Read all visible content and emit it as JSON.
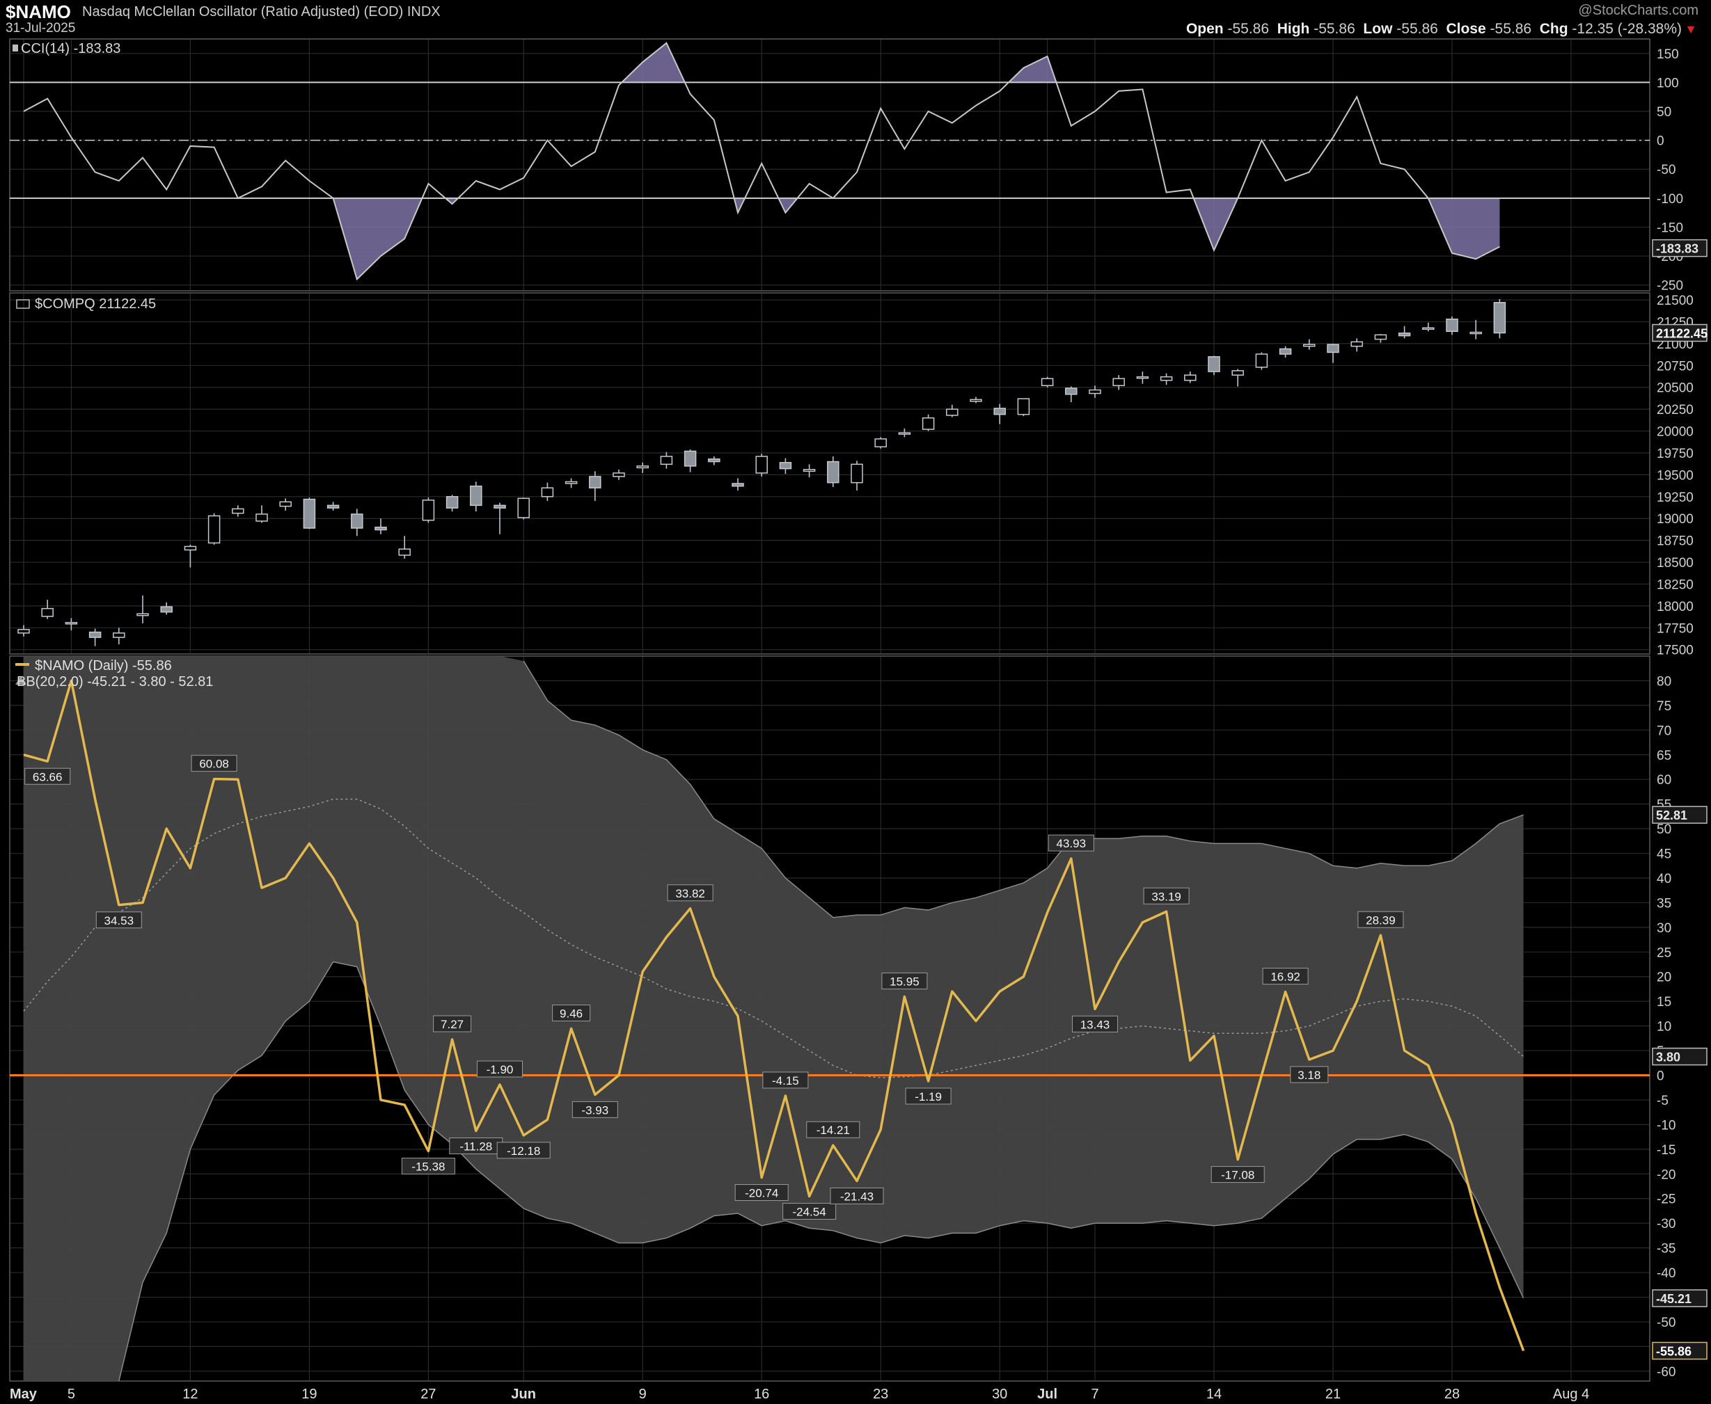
{
  "header": {
    "symbol": "$NAMO",
    "description": "Nasdaq McClellan Oscillator (Ratio Adjusted) (EOD)",
    "exchange": "INDX",
    "date": "31-Jul-2025",
    "brand": "@StockCharts.com",
    "open_label": "Open",
    "open": "-55.86",
    "high_label": "High",
    "high": "-55.86",
    "low_label": "Low",
    "low": "-55.86",
    "close_label": "Close",
    "close": "-55.86",
    "chg_label": "Chg",
    "chg": "-12.35 (-28.38%)",
    "chg_direction": "down"
  },
  "colors": {
    "background": "#000000",
    "grid": "#2a2a2a",
    "namo_line": "#e3b94f",
    "zero_line": "#ff7a1f",
    "bb_fill": "#444444",
    "cci_shade": "#7e72a6",
    "candle_up": "#000000",
    "candle_down": "#8e949c"
  },
  "chart_data": [
    {
      "type": "line",
      "panel": "cci",
      "legend": "CCI(14) -183.83",
      "last_value_label": "-183.83",
      "ylim": [
        -260,
        175
      ],
      "y_ticks": [
        150,
        100,
        50,
        0,
        -50,
        -100,
        -150,
        -200,
        -250
      ],
      "reference_lines": [
        100,
        0,
        -100
      ],
      "values": [
        50,
        72,
        5,
        -55,
        -70,
        -30,
        -85,
        -10,
        -12,
        -100,
        -80,
        -35,
        -70,
        -100,
        -240,
        -200,
        -170,
        -75,
        -110,
        -70,
        -85,
        -65,
        0,
        -45,
        -20,
        95,
        135,
        168,
        80,
        35,
        -125,
        -40,
        -125,
        -75,
        -100,
        -55,
        55,
        -15,
        50,
        30,
        60,
        85,
        125,
        145,
        25,
        50,
        85,
        88,
        -90,
        -85,
        -190,
        -100,
        0,
        -70,
        -55,
        5,
        75,
        -40,
        -50,
        -100,
        -195,
        -205,
        -183.83
      ]
    },
    {
      "type": "candlestick",
      "panel": "compq",
      "legend": "$COMPQ 21122.45",
      "last_value_label": "21122.45",
      "ylim": [
        17450,
        21580
      ],
      "y_ticks": [
        21500,
        21250,
        21000,
        20750,
        20500,
        20250,
        20000,
        19750,
        19500,
        19250,
        19000,
        18750,
        18500,
        18250,
        18000,
        17750,
        17500
      ],
      "ohlc": [
        [
          17690,
          17780,
          17650,
          17730
        ],
        [
          17880,
          18070,
          17850,
          17970
        ],
        [
          17800,
          17860,
          17720,
          17810
        ],
        [
          17700,
          17740,
          17540,
          17640
        ],
        [
          17640,
          17750,
          17560,
          17690
        ],
        [
          17890,
          18120,
          17800,
          17910
        ],
        [
          17990,
          18040,
          17900,
          17930
        ],
        [
          18640,
          18700,
          18440,
          18680
        ],
        [
          18720,
          19060,
          18700,
          19030
        ],
        [
          19060,
          19150,
          19020,
          19110
        ],
        [
          18970,
          19150,
          18950,
          19050
        ],
        [
          19140,
          19230,
          19090,
          19190
        ],
        [
          19220,
          19240,
          18880,
          18890
        ],
        [
          19150,
          19190,
          19090,
          19120
        ],
        [
          19050,
          19110,
          18800,
          18890
        ],
        [
          18900,
          19000,
          18820,
          18870
        ],
        [
          18580,
          18800,
          18540,
          18650
        ],
        [
          18980,
          19240,
          18950,
          19210
        ],
        [
          19250,
          19270,
          19080,
          19120
        ],
        [
          19370,
          19420,
          19080,
          19150
        ],
        [
          19150,
          19180,
          18820,
          19120
        ],
        [
          19010,
          19240,
          18990,
          19230
        ],
        [
          19250,
          19410,
          19200,
          19350
        ],
        [
          19400,
          19460,
          19350,
          19420
        ],
        [
          19480,
          19540,
          19200,
          19350
        ],
        [
          19480,
          19560,
          19440,
          19520
        ],
        [
          19580,
          19640,
          19520,
          19600
        ],
        [
          19620,
          19760,
          19570,
          19710
        ],
        [
          19770,
          19790,
          19530,
          19600
        ],
        [
          19680,
          19710,
          19610,
          19650
        ],
        [
          19400,
          19460,
          19320,
          19370
        ],
        [
          19520,
          19740,
          19480,
          19710
        ],
        [
          19640,
          19690,
          19510,
          19570
        ],
        [
          19540,
          19620,
          19470,
          19560
        ],
        [
          19650,
          19710,
          19360,
          19410
        ],
        [
          19410,
          19660,
          19320,
          19620
        ],
        [
          19820,
          19930,
          19800,
          19910
        ],
        [
          19980,
          20030,
          19930,
          19980
        ],
        [
          20020,
          20190,
          20000,
          20150
        ],
        [
          20180,
          20300,
          20160,
          20250
        ],
        [
          20340,
          20390,
          20320,
          20360
        ],
        [
          20260,
          20310,
          20080,
          20190
        ],
        [
          20190,
          20370,
          20170,
          20370
        ],
        [
          20520,
          20620,
          20500,
          20600
        ],
        [
          20490,
          20510,
          20330,
          20420
        ],
        [
          20430,
          20520,
          20380,
          20470
        ],
        [
          20520,
          20640,
          20470,
          20600
        ],
        [
          20610,
          20680,
          20540,
          20620
        ],
        [
          20580,
          20660,
          20530,
          20620
        ],
        [
          20580,
          20680,
          20550,
          20640
        ],
        [
          20850,
          20860,
          20640,
          20680
        ],
        [
          20640,
          20710,
          20510,
          20690
        ],
        [
          20730,
          20900,
          20700,
          20880
        ],
        [
          20940,
          20970,
          20840,
          20880
        ],
        [
          20970,
          21050,
          20930,
          20990
        ],
        [
          20990,
          21000,
          20780,
          20900
        ],
        [
          20970,
          21060,
          20910,
          21020
        ],
        [
          21050,
          21110,
          21010,
          21100
        ],
        [
          21120,
          21200,
          21060,
          21090
        ],
        [
          21170,
          21240,
          21140,
          21180
        ],
        [
          21280,
          21310,
          21100,
          21140
        ],
        [
          21120,
          21270,
          21050,
          21130
        ],
        [
          21470,
          21510,
          21060,
          21122.45
        ]
      ]
    },
    {
      "type": "line",
      "panel": "namo",
      "legend": "$NAMO (Daily) -55.86",
      "bb_legend": "BB(20,2.0) -45.21 - 3.80 - 52.81",
      "ylim": [
        -62,
        85
      ],
      "y_ticks": [
        80,
        75,
        70,
        65,
        60,
        55,
        50,
        45,
        40,
        35,
        30,
        25,
        20,
        15,
        10,
        5,
        0,
        -5,
        -10,
        -15,
        -20,
        -25,
        -30,
        -35,
        -40,
        -45,
        -50,
        -55,
        -60
      ],
      "zero_line": 0,
      "values": [
        65,
        63.66,
        80,
        56,
        34.53,
        35,
        50,
        42,
        60.08,
        60,
        38,
        40,
        47,
        40,
        31,
        -5,
        -6,
        -15.38,
        7.27,
        -11.28,
        -1.9,
        -12.18,
        -9,
        9.46,
        -3.93,
        0,
        21,
        28,
        33.82,
        20,
        12,
        -20.74,
        -4.15,
        -24.54,
        -14.21,
        -21.43,
        -11,
        15.95,
        -1.19,
        17,
        11,
        17,
        20,
        33,
        43.93,
        13.43,
        23,
        31,
        33.19,
        3,
        8,
        -17.08,
        0,
        16.92,
        3.18,
        5,
        15,
        28.39,
        5,
        2,
        -10,
        -28,
        -43,
        -55.86
      ],
      "bb_upper": [
        null,
        null,
        null,
        null,
        null,
        null,
        null,
        null,
        null,
        null,
        null,
        null,
        null,
        null,
        null,
        null,
        null,
        null,
        null,
        null,
        null,
        84,
        76,
        72,
        71,
        69,
        66,
        64,
        59,
        52,
        49,
        46,
        40,
        36,
        32,
        32.5,
        32.5,
        34,
        33.5,
        35,
        36,
        37.5,
        39,
        42,
        48,
        48,
        48,
        48.5,
        48.5,
        47.5,
        47,
        47,
        47,
        46,
        45,
        42.5,
        42,
        43,
        42.5,
        42.5,
        43.5,
        47,
        51,
        52.81
      ],
      "bb_middle": [
        13,
        19,
        24,
        30,
        33,
        36,
        41,
        46,
        49,
        51,
        52.5,
        53.5,
        54.5,
        56,
        56,
        54,
        50.5,
        46,
        43,
        40,
        36,
        33,
        29.5,
        26.5,
        24,
        22,
        20,
        17.5,
        16,
        15,
        13.5,
        11,
        8,
        5,
        2,
        0,
        -0.5,
        -0.3,
        0,
        1,
        2,
        3,
        4,
        5.5,
        7.5,
        9,
        9.5,
        10,
        9.5,
        9,
        8.5,
        8.5,
        8.5,
        9,
        10,
        12,
        14,
        15,
        15.5,
        15,
        14,
        12,
        8,
        3.8
      ],
      "bb_lower": [
        null,
        null,
        null,
        null,
        -62,
        -42,
        -32,
        -15,
        -4,
        1,
        4,
        11,
        15,
        23,
        22,
        10,
        -3,
        -10,
        -14,
        -19,
        -23,
        -27,
        -29,
        -30,
        -32,
        -34,
        -34,
        -33,
        -31,
        -28.5,
        -28,
        -30.5,
        -29.5,
        -31,
        -31.5,
        -33,
        -34,
        -32.5,
        -33,
        -32,
        -32,
        -30.5,
        -29.5,
        -30,
        -31,
        -30,
        -30,
        -30,
        -29.5,
        -30,
        -30.5,
        -30,
        -29,
        -25,
        -21,
        -16,
        -13,
        -13,
        -12,
        -13.5,
        -17,
        -25,
        -35,
        -45.21
      ]
    }
  ],
  "axis": {
    "price_labels": {
      "cci_value": "-183.83",
      "compq_value": "21122.45",
      "bb_upper": "52.81",
      "bb_middle": "3.80",
      "bb_lower": "-45.21",
      "namo_value": "-55.86"
    },
    "x_ticks": [
      {
        "label": "May",
        "bold": true,
        "index": 0
      },
      {
        "label": "5",
        "bold": false,
        "index": 2
      },
      {
        "label": "12",
        "bold": false,
        "index": 7
      },
      {
        "label": "19",
        "bold": false,
        "index": 12
      },
      {
        "label": "27",
        "bold": false,
        "index": 17
      },
      {
        "label": "Jun",
        "bold": true,
        "index": 21
      },
      {
        "label": "9",
        "bold": false,
        "index": 26
      },
      {
        "label": "16",
        "bold": false,
        "index": 31
      },
      {
        "label": "23",
        "bold": false,
        "index": 36
      },
      {
        "label": "30",
        "bold": false,
        "index": 41
      },
      {
        "label": "Jul",
        "bold": true,
        "index": 43
      },
      {
        "label": "7",
        "bold": false,
        "index": 45
      },
      {
        "label": "14",
        "bold": false,
        "index": 50
      },
      {
        "label": "21",
        "bold": false,
        "index": 55
      },
      {
        "label": "28",
        "bold": false,
        "index": 60
      },
      {
        "label": "Aug 4",
        "bold": false,
        "index": 65
      }
    ]
  },
  "annotations": [
    {
      "text": "63.66",
      "index": 1,
      "value": 63.66,
      "pos": "below"
    },
    {
      "text": "34.53",
      "index": 4,
      "value": 34.53,
      "pos": "below"
    },
    {
      "text": "60.08",
      "index": 8,
      "value": 60.08,
      "pos": "above"
    },
    {
      "text": "-15.38",
      "index": 17,
      "value": -15.38,
      "pos": "below"
    },
    {
      "text": "7.27",
      "index": 18,
      "value": 7.27,
      "pos": "above"
    },
    {
      "text": "-11.28",
      "index": 19,
      "value": -11.28,
      "pos": "below"
    },
    {
      "text": "-1.90",
      "index": 20,
      "value": -1.9,
      "pos": "above"
    },
    {
      "text": "-12.18",
      "index": 21,
      "value": -12.18,
      "pos": "below"
    },
    {
      "text": "9.46",
      "index": 23,
      "value": 9.46,
      "pos": "above"
    },
    {
      "text": "-3.93",
      "index": 24,
      "value": -3.93,
      "pos": "below"
    },
    {
      "text": "33.82",
      "index": 28,
      "value": 33.82,
      "pos": "above"
    },
    {
      "text": "-20.74",
      "index": 31,
      "value": -20.74,
      "pos": "below"
    },
    {
      "text": "-4.15",
      "index": 32,
      "value": -4.15,
      "pos": "above"
    },
    {
      "text": "-24.54",
      "index": 33,
      "value": -24.54,
      "pos": "below"
    },
    {
      "text": "-14.21",
      "index": 34,
      "value": -14.21,
      "pos": "above"
    },
    {
      "text": "-21.43",
      "index": 35,
      "value": -21.43,
      "pos": "below"
    },
    {
      "text": "15.95",
      "index": 37,
      "value": 15.95,
      "pos": "above"
    },
    {
      "text": "-1.19",
      "index": 38,
      "value": -1.19,
      "pos": "below"
    },
    {
      "text": "43.93",
      "index": 44,
      "value": 43.93,
      "pos": "above"
    },
    {
      "text": "13.43",
      "index": 45,
      "value": 13.43,
      "pos": "below"
    },
    {
      "text": "33.19",
      "index": 48,
      "value": 33.19,
      "pos": "above"
    },
    {
      "text": "-17.08",
      "index": 51,
      "value": -17.08,
      "pos": "below"
    },
    {
      "text": "16.92",
      "index": 53,
      "value": 16.92,
      "pos": "above"
    },
    {
      "text": "3.18",
      "index": 54,
      "value": 3.18,
      "pos": "below"
    },
    {
      "text": "28.39",
      "index": 57,
      "value": 28.39,
      "pos": "above"
    }
  ]
}
